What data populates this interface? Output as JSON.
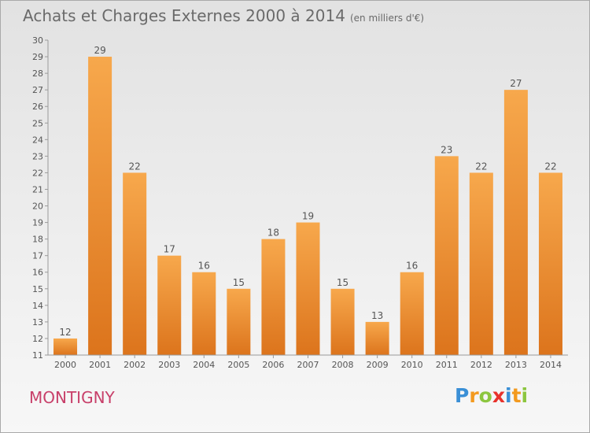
{
  "header": {
    "title": "Achats et Charges Externes 2000 à 2014",
    "subtitle": "(en milliers d'€)"
  },
  "commune": "MONTIGNY",
  "logo": {
    "text": "Proxiti"
  },
  "colors": {
    "bar_light": "#f7a84c",
    "bar_dark": "#dc741c",
    "commune": "#c8406a"
  },
  "chart_data": {
    "type": "bar",
    "title": "Achats et Charges Externes 2000 à 2014",
    "subtitle": "(en milliers d'€)",
    "categories": [
      "2000",
      "2001",
      "2002",
      "2003",
      "2004",
      "2005",
      "2006",
      "2007",
      "2008",
      "2009",
      "2010",
      "2011",
      "2012",
      "2013",
      "2014"
    ],
    "values": [
      12,
      29,
      22,
      17,
      16,
      15,
      18,
      19,
      15,
      13,
      16,
      23,
      22,
      27,
      22
    ],
    "ylim": [
      11,
      30
    ],
    "yticks": [
      11,
      12,
      13,
      14,
      15,
      16,
      17,
      18,
      19,
      20,
      21,
      22,
      23,
      24,
      25,
      26,
      27,
      28,
      29,
      30
    ],
    "grid": false,
    "data_labels": true
  }
}
